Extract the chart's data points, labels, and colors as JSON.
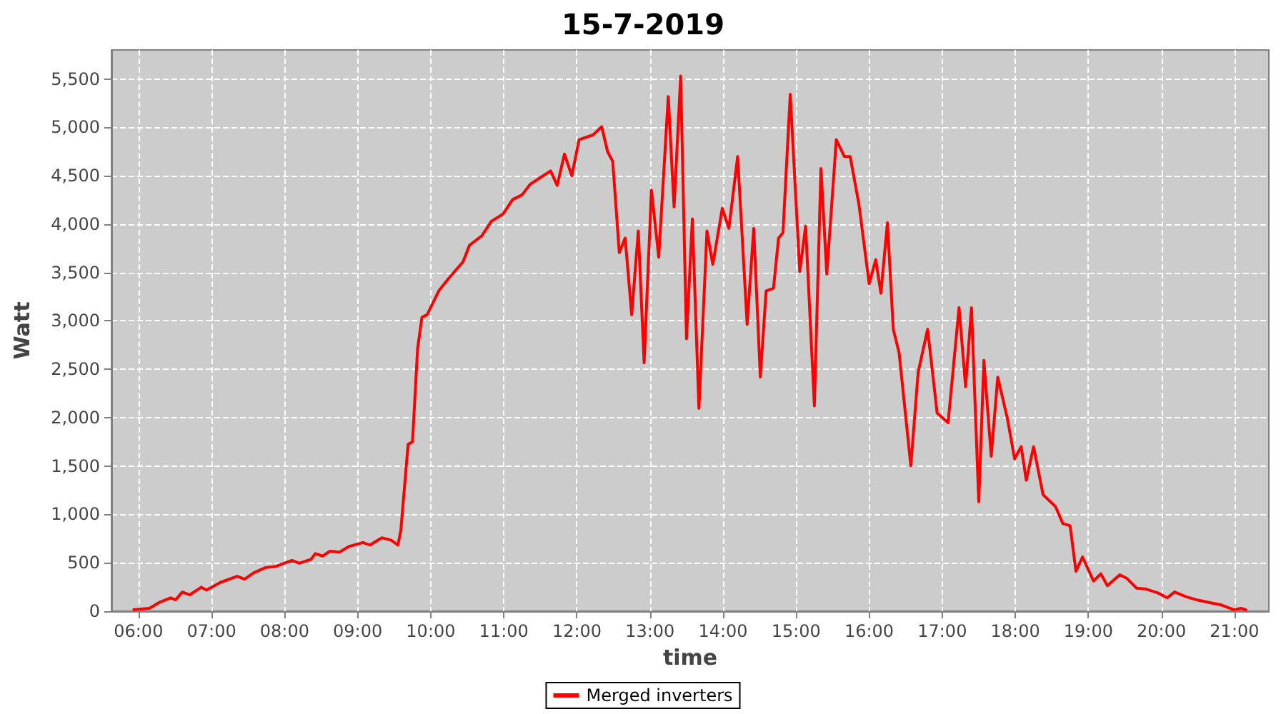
{
  "chart_data": {
    "type": "line",
    "title": "15-7-2019",
    "xlabel": "time",
    "ylabel": "Watt",
    "xlim": [
      5.63,
      21.47
    ],
    "xticks": [
      {
        "value": 6,
        "label": "06:00"
      },
      {
        "value": 7,
        "label": "07:00"
      },
      {
        "value": 8,
        "label": "08:00"
      },
      {
        "value": 9,
        "label": "09:00"
      },
      {
        "value": 10,
        "label": "10:00"
      },
      {
        "value": 11,
        "label": "11:00"
      },
      {
        "value": 12,
        "label": "12:00"
      },
      {
        "value": 13,
        "label": "13:00"
      },
      {
        "value": 14,
        "label": "14:00"
      },
      {
        "value": 15,
        "label": "15:00"
      },
      {
        "value": 16,
        "label": "16:00"
      },
      {
        "value": 17,
        "label": "17:00"
      },
      {
        "value": 18,
        "label": "18:00"
      },
      {
        "value": 19,
        "label": "19:00"
      },
      {
        "value": 20,
        "label": "20:00"
      },
      {
        "value": 21,
        "label": "21:00"
      }
    ],
    "ylim": [
      0,
      5800
    ],
    "yticks": [
      0,
      500,
      {
        "value": 1000,
        "label": "1,000"
      },
      {
        "value": 1500,
        "label": "1,500"
      },
      {
        "value": 2000,
        "label": "2,000"
      },
      {
        "value": 2500,
        "label": "2,500"
      },
      {
        "value": 3000,
        "label": "3,000"
      },
      {
        "value": 3500,
        "label": "3,500"
      },
      {
        "value": 4000,
        "label": "4,000"
      },
      {
        "value": 4500,
        "label": "4,500"
      },
      {
        "value": 5000,
        "label": "5,000"
      },
      {
        "value": 5500,
        "label": "5,500"
      }
    ],
    "grid": true,
    "legend": "bottom",
    "marker": "none",
    "line_style": "solid",
    "series": [
      {
        "name": "Merged inverters",
        "color": "#ff0000",
        "x": [
          5.92,
          6.15,
          6.28,
          6.44,
          6.51,
          6.6,
          6.7,
          6.86,
          6.93,
          7.12,
          7.35,
          7.45,
          7.58,
          7.74,
          7.87,
          8.1,
          8.2,
          8.36,
          8.42,
          8.52,
          8.62,
          8.75,
          8.88,
          9.07,
          9.17,
          9.33,
          9.46,
          9.55,
          9.59,
          9.69,
          9.75,
          9.82,
          9.88,
          9.95,
          10.11,
          10.24,
          10.44,
          10.53,
          10.7,
          10.83,
          10.99,
          11.12,
          11.25,
          11.36,
          11.64,
          11.73,
          11.83,
          11.93,
          12.03,
          12.22,
          12.34,
          12.42,
          12.49,
          12.58,
          12.66,
          12.75,
          12.84,
          12.92,
          13.02,
          13.12,
          13.25,
          13.33,
          13.42,
          13.5,
          13.58,
          13.67,
          13.78,
          13.86,
          13.99,
          14.08,
          14.2,
          14.33,
          14.42,
          14.51,
          14.59,
          14.69,
          14.76,
          14.82,
          14.92,
          15.05,
          15.13,
          15.25,
          15.34,
          15.42,
          15.55,
          15.66,
          15.74,
          15.86,
          16.0,
          16.09,
          16.16,
          16.25,
          16.33,
          16.41,
          16.57,
          16.67,
          16.8,
          16.93,
          17.08,
          17.23,
          17.32,
          17.4,
          17.5,
          17.57,
          17.67,
          17.76,
          17.89,
          17.99,
          18.08,
          18.15,
          18.25,
          18.38,
          18.55,
          18.65,
          18.75,
          18.83,
          18.92,
          19.07,
          19.17,
          19.26,
          19.43,
          19.53,
          19.66,
          19.79,
          19.95,
          20.08,
          20.18,
          20.34,
          20.5,
          20.66,
          20.82,
          20.99,
          21.09,
          21.17
        ],
        "values": [
          15,
          30,
          89,
          138,
          118,
          198,
          168,
          248,
          218,
          297,
          361,
          331,
          397,
          451,
          461,
          525,
          495,
          535,
          595,
          570,
          620,
          610,
          669,
          709,
          684,
          758,
          733,
          684,
          833,
          1725,
          1750,
          2717,
          3038,
          3063,
          3311,
          3435,
          3609,
          3782,
          3881,
          4030,
          4105,
          4253,
          4303,
          4412,
          4550,
          4400,
          4724,
          4500,
          4873,
          4922,
          5007,
          4748,
          4650,
          3707,
          3856,
          3063,
          3930,
          2567,
          4352,
          3658,
          5319,
          4178,
          5530,
          2815,
          4055,
          2097,
          3930,
          3584,
          4164,
          3956,
          4699,
          2964,
          3956,
          2419,
          3311,
          3336,
          3856,
          3911,
          5342,
          3509,
          3980,
          2122,
          4575,
          3484,
          4873,
          4699,
          4699,
          4203,
          3386,
          3633,
          3286,
          4015,
          2914,
          2667,
          1502,
          2468,
          2914,
          2047,
          1948,
          3137,
          2320,
          3137,
          1130,
          2592,
          1602,
          2419,
          1997,
          1576,
          1700,
          1353,
          1700,
          1204,
          1081,
          907,
          882,
          412,
          560,
          312,
          387,
          263,
          376,
          337,
          238,
          228,
          189,
          138,
          198,
          149,
          114,
          89,
          64,
          15,
          30,
          10
        ]
      }
    ]
  }
}
